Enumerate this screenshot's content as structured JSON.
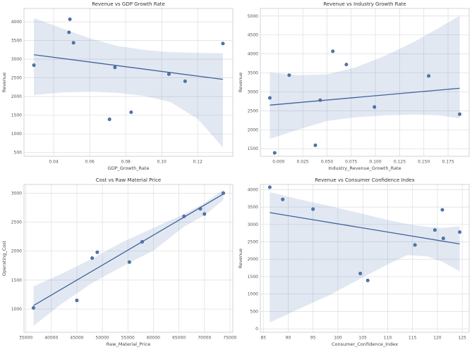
{
  "figure": {
    "background": "#ffffff",
    "plot_background": "#ffffff",
    "point_fill": "#5279b5",
    "point_edge": "#35578a",
    "line_color": "#3f649c",
    "band_color": "#4c72b0",
    "band_opacity": 0.16,
    "grid_color": "#dcdde2",
    "spine_color": "#c6c9cf",
    "title_color": "#333333",
    "label_color": "#444444",
    "tick_color": "#555555"
  },
  "chart_data": [
    {
      "type": "scatter",
      "title": "Revenue vs GDP Growth Rate",
      "xlabel": "GDP_Growth_Rate",
      "ylabel": "Revenue",
      "xlim": [
        0.0235,
        0.1395
      ],
      "ylim": [
        400,
        4360
      ],
      "xticks": [
        0.04,
        0.06,
        0.08,
        0.1,
        0.12
      ],
      "xtick_labels": [
        "0.04",
        "0.06",
        "0.08",
        "0.10",
        "0.12"
      ],
      "yticks": [
        500,
        1000,
        1500,
        2000,
        2500,
        3000,
        3500,
        4000
      ],
      "ytick_labels": [
        "500",
        "1000",
        "1500",
        "2000",
        "2500",
        "3000",
        "3500",
        "4000"
      ],
      "grid": true,
      "legend": "none",
      "points": [
        [
          0.029,
          2840
        ],
        [
          0.0485,
          3720
        ],
        [
          0.049,
          4070
        ],
        [
          0.051,
          3440
        ],
        [
          0.071,
          1390
        ],
        [
          0.074,
          2780
        ],
        [
          0.083,
          1580
        ],
        [
          0.104,
          2600
        ],
        [
          0.113,
          2410
        ],
        [
          0.134,
          3420
        ]
      ],
      "regression": {
        "x": [
          0.029,
          0.134
        ],
        "y": [
          3120,
          2460
        ]
      },
      "band": {
        "x": [
          0.029,
          0.045,
          0.06,
          0.075,
          0.09,
          0.105,
          0.12,
          0.134
        ],
        "upper": [
          4100,
          3820,
          3560,
          3360,
          3250,
          3190,
          3170,
          3160
        ],
        "lower": [
          2040,
          2110,
          2130,
          2100,
          2020,
          1850,
          1400,
          640
        ]
      }
    },
    {
      "type": "scatter",
      "title": "Revenue vs Industry Growth Rate",
      "xlabel": "Industry_Revenue_Growth_Rate",
      "ylabel": "Revenue",
      "xlim": [
        -0.0188,
        0.1968
      ],
      "ylim": [
        1300,
        5200
      ],
      "xticks": [
        0.0,
        0.025,
        0.05,
        0.075,
        0.1,
        0.125,
        0.15,
        0.175
      ],
      "xtick_labels": [
        "0.000",
        "0.025",
        "0.050",
        "0.075",
        "0.100",
        "0.125",
        "0.150",
        "0.175"
      ],
      "yticks": [
        1500,
        2000,
        2500,
        3000,
        3500,
        4000,
        4500,
        5000
      ],
      "ytick_labels": [
        "1500",
        "2000",
        "2500",
        "3000",
        "3500",
        "4000",
        "4500",
        "5000"
      ],
      "grid": true,
      "legend": "none",
      "points": [
        [
          -0.009,
          2840
        ],
        [
          -0.004,
          1390
        ],
        [
          0.011,
          3440
        ],
        [
          0.038,
          1590
        ],
        [
          0.043,
          2780
        ],
        [
          0.056,
          4070
        ],
        [
          0.07,
          3720
        ],
        [
          0.099,
          2600
        ],
        [
          0.155,
          3420
        ],
        [
          0.187,
          2410
        ]
      ],
      "regression": {
        "x": [
          -0.009,
          0.187
        ],
        "y": [
          2650,
          3095
        ]
      },
      "band": {
        "x": [
          -0.009,
          0.02,
          0.05,
          0.08,
          0.11,
          0.14,
          0.165,
          0.187
        ],
        "upper": [
          3510,
          3440,
          3460,
          3650,
          3950,
          4320,
          4680,
          5010
        ],
        "lower": [
          1760,
          2000,
          2230,
          2330,
          2380,
          2400,
          2380,
          2300
        ]
      }
    },
    {
      "type": "scatter",
      "title": "Cost vs Raw Material Price",
      "xlabel": "Raw_Material_Price",
      "ylabel": "Operating_Cost",
      "xlim": [
        34640,
        75560
      ],
      "ylim": [
        600,
        3150
      ],
      "xticks": [
        35000,
        40000,
        45000,
        50000,
        55000,
        60000,
        65000,
        70000,
        75000
      ],
      "xtick_labels": [
        "35000",
        "40000",
        "45000",
        "50000",
        "55000",
        "60000",
        "65000",
        "70000",
        "75000"
      ],
      "yticks": [
        1000,
        1500,
        2000,
        2500,
        3000
      ],
      "ytick_labels": [
        "1000",
        "1500",
        "2000",
        "2500",
        "3000"
      ],
      "grid": true,
      "legend": "none",
      "points": [
        [
          36500,
          1020
        ],
        [
          45000,
          1150
        ],
        [
          48000,
          1880
        ],
        [
          49000,
          1980
        ],
        [
          55300,
          1810
        ],
        [
          57800,
          2160
        ],
        [
          66000,
          2600
        ],
        [
          69200,
          2730
        ],
        [
          70000,
          2640
        ],
        [
          73700,
          3000
        ]
      ],
      "regression": {
        "x": [
          36500,
          73700
        ],
        "y": [
          1060,
          2985
        ]
      },
      "band": {
        "x": [
          36500,
          42000,
          48000,
          54000,
          60000,
          66000,
          70000,
          73700
        ],
        "upper": [
          1390,
          1610,
          1870,
          2160,
          2400,
          2640,
          2830,
          3060
        ],
        "lower": [
          710,
          1090,
          1450,
          1740,
          2010,
          2420,
          2620,
          2880
        ]
      }
    },
    {
      "type": "scatter",
      "title": "Revenue vs Consumer Confidence Index",
      "xlabel": "Consumer_Confidence_Index",
      "ylabel": "Revenue",
      "xlim": [
        84.4,
        126.4
      ],
      "ylim": [
        -100,
        4150
      ],
      "xticks": [
        85,
        90,
        95,
        100,
        105,
        110,
        115,
        120,
        125
      ],
      "xtick_labels": [
        "85",
        "90",
        "95",
        "100",
        "105",
        "110",
        "115",
        "120",
        "125"
      ],
      "yticks": [
        0,
        500,
        1000,
        1500,
        2000,
        2500,
        3000,
        3500,
        4000
      ],
      "ytick_labels": [
        "0",
        "500",
        "1000",
        "1500",
        "2000",
        "2500",
        "3000",
        "3500",
        "4000"
      ],
      "grid": true,
      "legend": "none",
      "points": [
        [
          86.3,
          4070
        ],
        [
          88.9,
          3720
        ],
        [
          95.0,
          3440
        ],
        [
          104.5,
          1590
        ],
        [
          106.0,
          1390
        ],
        [
          115.5,
          2410
        ],
        [
          119.5,
          2840
        ],
        [
          121.0,
          3420
        ],
        [
          121.2,
          2600
        ],
        [
          124.5,
          2780
        ]
      ],
      "regression": {
        "x": [
          86.3,
          124.5
        ],
        "y": [
          3340,
          2440
        ]
      },
      "band": {
        "x": [
          86.3,
          92,
          98,
          104,
          110,
          114,
          118,
          121,
          124.5
        ],
        "upper": [
          3930,
          3730,
          3540,
          3340,
          3130,
          3010,
          2930,
          2900,
          2950
        ],
        "lower": [
          180,
          560,
          950,
          1400,
          1850,
          2120,
          2080,
          1930,
          1650
        ]
      }
    }
  ]
}
